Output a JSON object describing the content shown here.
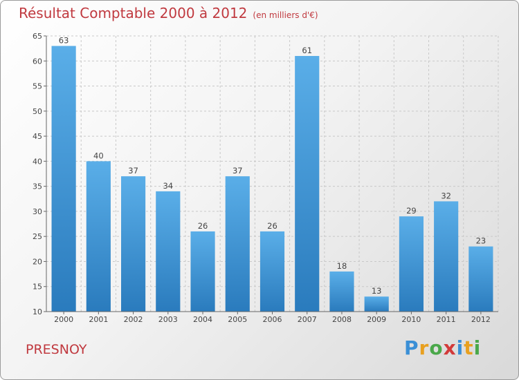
{
  "title": "Résultat Comptable 2000 à 2012",
  "subtitle": "(en milliers d'€)",
  "place": "PRESNOY",
  "logo": "Proxiti",
  "colors": {
    "bar_light": "#5aaee8",
    "bar_dark": "#2a7bbd",
    "title": "#c0393f",
    "grid": "#c8c8c8"
  },
  "chart_data": {
    "type": "bar",
    "title": "Résultat Comptable 2000 à 2012",
    "subtitle": "(en milliers d'€)",
    "xlabel": "",
    "ylabel": "",
    "categories": [
      "2000",
      "2001",
      "2002",
      "2003",
      "2004",
      "2005",
      "2006",
      "2007",
      "2008",
      "2009",
      "2010",
      "2011",
      "2012"
    ],
    "values": [
      63,
      40,
      37,
      34,
      26,
      37,
      26,
      61,
      18,
      13,
      29,
      32,
      23
    ],
    "ylim": [
      10,
      65
    ],
    "yticks": [
      10,
      15,
      20,
      25,
      30,
      35,
      40,
      45,
      50,
      55,
      60,
      65
    ],
    "grid": true
  }
}
